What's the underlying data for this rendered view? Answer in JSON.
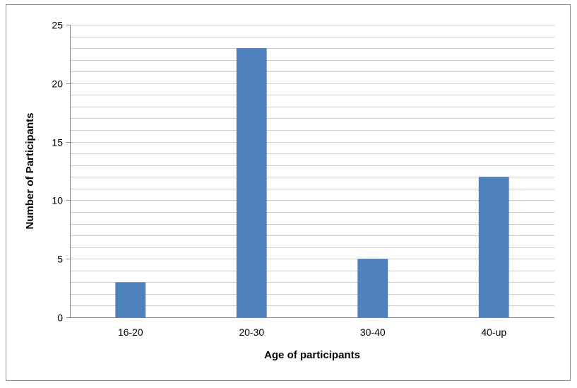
{
  "chart_data": {
    "type": "bar",
    "title": "",
    "xlabel": "Age of participants",
    "ylabel": "Number of Participants",
    "categories": [
      "16-20",
      "20-30",
      "30-40",
      "40-up"
    ],
    "series": [
      {
        "values": [
          3,
          23,
          5,
          12
        ]
      }
    ],
    "ylim": [
      0,
      25
    ],
    "y_major_ticks": [
      0,
      5,
      10,
      15,
      20,
      25
    ],
    "y_minor_step": 1,
    "grid": true,
    "legend": "none",
    "colors": {
      "bar": "#4f81bd",
      "grid": "#d0d0d0",
      "axis": "#868686"
    }
  }
}
